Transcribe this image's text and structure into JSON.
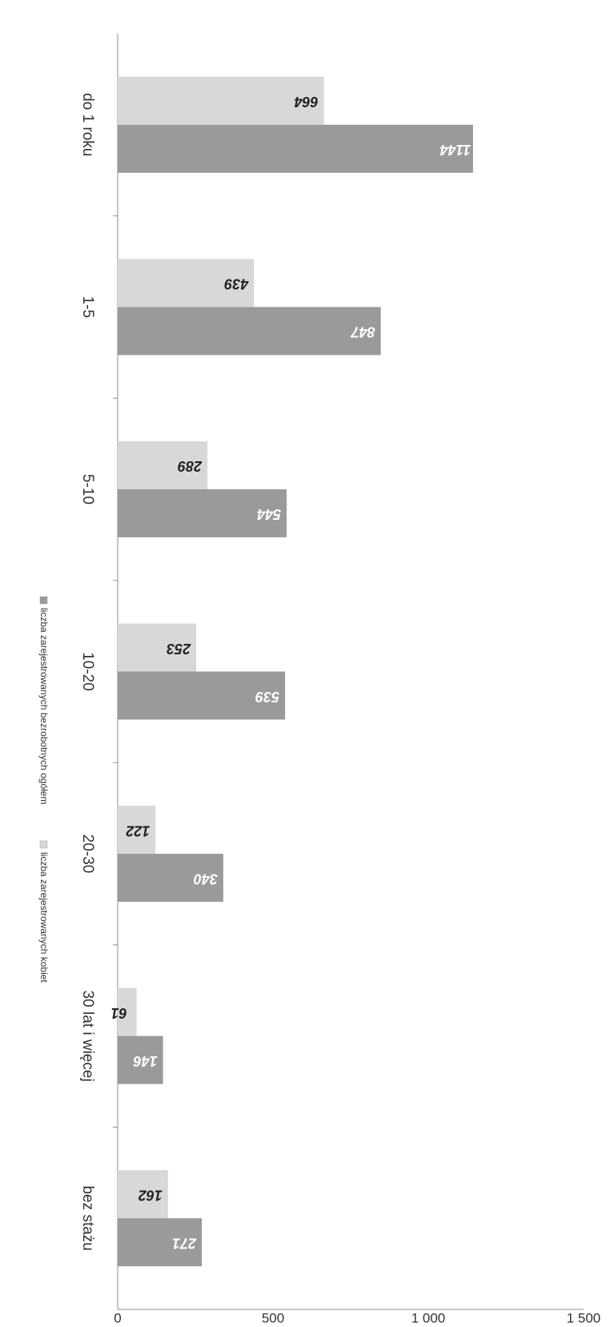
{
  "chart_data": {
    "type": "bar",
    "orientation": "horizontal",
    "categories": [
      "do 1 roku",
      "1-5",
      "5-10",
      "10-20",
      "20-30",
      "30 lat i więcej",
      "bez stażu"
    ],
    "series": [
      {
        "name": "liczba zarejestrowanych bezrobotnych ogółem",
        "values": [
          1144,
          847,
          544,
          539,
          340,
          146,
          271
        ],
        "labels": [
          "1144",
          "847",
          "544",
          "539",
          "340",
          "146",
          "271"
        ],
        "color": "#9a9a9a"
      },
      {
        "name": "liczba zarejestrowanych kobiet",
        "values": [
          664,
          439,
          289,
          253,
          122,
          61,
          162
        ],
        "labels": [
          "664",
          "439",
          "289",
          "253",
          "122",
          "61",
          "162"
        ],
        "color": "#d8d8d8"
      }
    ],
    "value_axis": {
      "min": 0,
      "max": 1500,
      "ticks": [
        0,
        500,
        1000,
        1500
      ],
      "tick_labels": [
        "0",
        "500",
        "1 000",
        "1 500"
      ]
    },
    "grid": false,
    "legend_position": "bottom",
    "title": "",
    "xlabel": "",
    "ylabel": ""
  }
}
